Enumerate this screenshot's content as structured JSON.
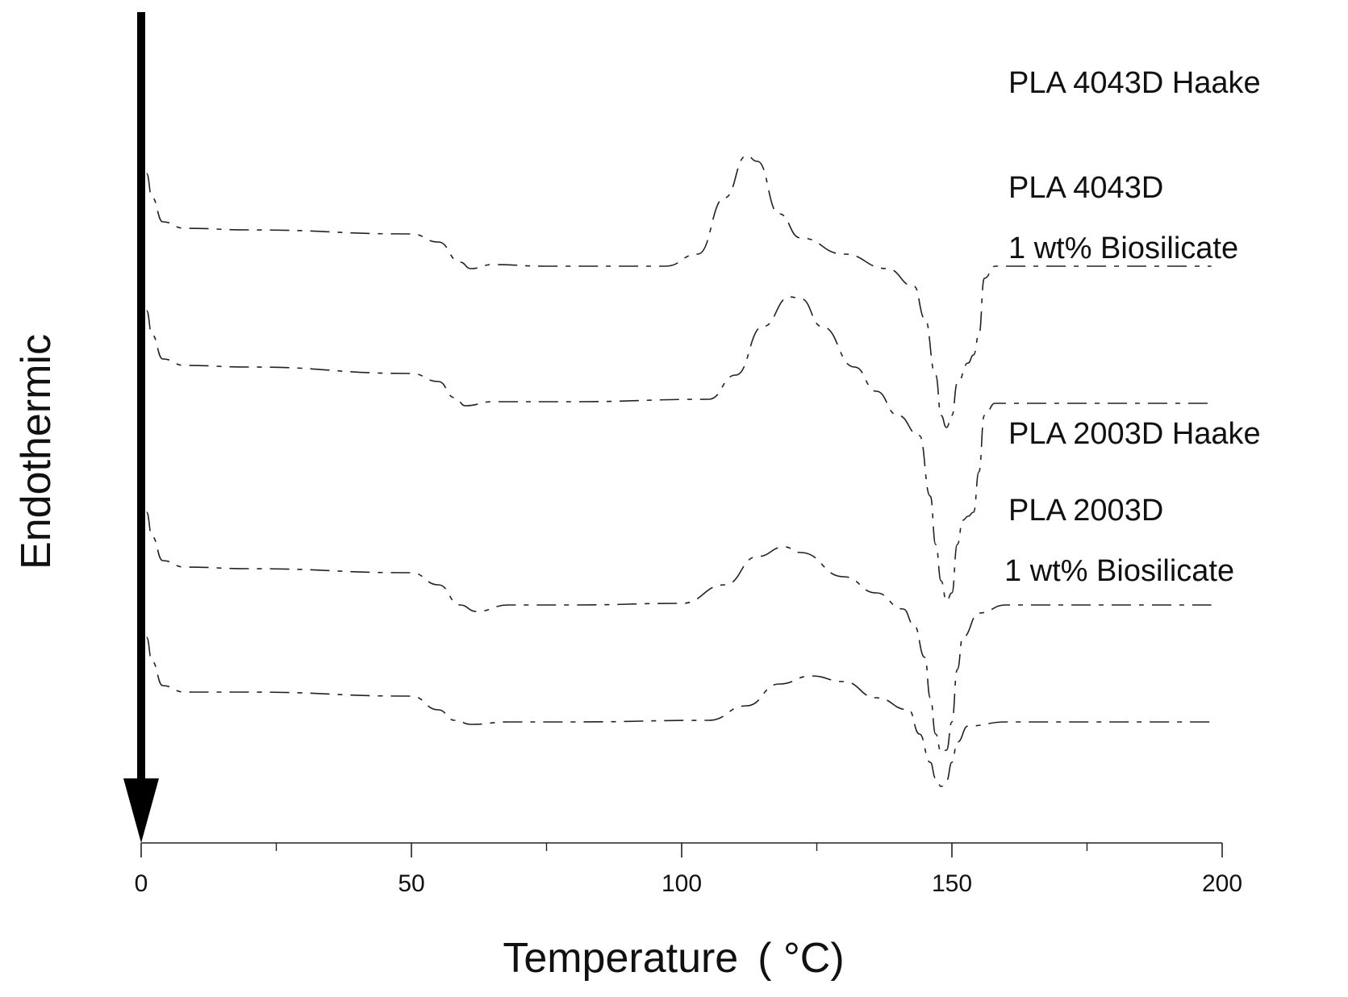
{
  "chart_data": {
    "type": "line",
    "xlabel": "Temperature",
    "xlabel_unit": "( °C)",
    "ylabel": "Endothermic",
    "xlim": [
      0,
      200
    ],
    "x_ticks": [
      0,
      50,
      100,
      150,
      200
    ],
    "x_minor_ticks": [
      25,
      75,
      125,
      175
    ],
    "y_ticks": [],
    "grid": false,
    "series": [
      {
        "name": "PLA 4043D Haake",
        "label_lines": [
          "PLA 4043D Haake"
        ],
        "points": [
          [
            1,
            -20
          ],
          [
            2,
            -50
          ],
          [
            4,
            -80
          ],
          [
            8,
            -88
          ],
          [
            20,
            -90
          ],
          [
            50,
            -95
          ],
          [
            55,
            -105
          ],
          [
            59,
            -130
          ],
          [
            61,
            -138
          ],
          [
            65,
            -133
          ],
          [
            75,
            -135
          ],
          [
            97,
            -135
          ],
          [
            103,
            -120
          ],
          [
            108,
            -50
          ],
          [
            112,
            2
          ],
          [
            114,
            -5
          ],
          [
            118,
            -70
          ],
          [
            122,
            -100
          ],
          [
            130,
            -120
          ],
          [
            138,
            -138
          ],
          [
            143,
            -160
          ],
          [
            145,
            -200
          ],
          [
            147,
            -270
          ],
          [
            148,
            -320
          ],
          [
            149,
            -335
          ],
          [
            150,
            -320
          ],
          [
            151,
            -280
          ],
          [
            153,
            -255
          ],
          [
            154,
            -245
          ],
          [
            155,
            -220
          ],
          [
            156,
            -150
          ],
          [
            158,
            -135
          ],
          [
            170,
            -135
          ],
          [
            198,
            -135
          ]
        ]
      },
      {
        "name": "PLA 4043D 1 wt% Biosilicate",
        "label_lines": [
          "PLA 4043D",
          "1 wt% Biosilicate"
        ],
        "points": [
          [
            1,
            -20
          ],
          [
            2,
            -50
          ],
          [
            4,
            -80
          ],
          [
            8,
            -88
          ],
          [
            20,
            -90
          ],
          [
            50,
            -98
          ],
          [
            55,
            -108
          ],
          [
            58,
            -128
          ],
          [
            60,
            -138
          ],
          [
            65,
            -133
          ],
          [
            80,
            -133
          ],
          [
            105,
            -130
          ],
          [
            110,
            -100
          ],
          [
            115,
            -40
          ],
          [
            120,
            -3
          ],
          [
            122,
            -5
          ],
          [
            126,
            -40
          ],
          [
            132,
            -90
          ],
          [
            136,
            -120
          ],
          [
            140,
            -150
          ],
          [
            144,
            -175
          ],
          [
            146,
            -250
          ],
          [
            147,
            -310
          ],
          [
            148,
            -355
          ],
          [
            149,
            -380
          ],
          [
            150,
            -370
          ],
          [
            151,
            -310
          ],
          [
            152,
            -280
          ],
          [
            153,
            -275
          ],
          [
            154,
            -270
          ],
          [
            155,
            -220
          ],
          [
            156,
            -150
          ],
          [
            158,
            -135
          ],
          [
            170,
            -135
          ],
          [
            198,
            -135
          ]
        ]
      },
      {
        "name": "PLA 2003D Haake",
        "label_lines": [
          "PLA 2003D Haake"
        ],
        "points": [
          [
            1,
            -20
          ],
          [
            2,
            -50
          ],
          [
            4,
            -80
          ],
          [
            8,
            -88
          ],
          [
            20,
            -90
          ],
          [
            50,
            -95
          ],
          [
            55,
            -110
          ],
          [
            59,
            -135
          ],
          [
            62,
            -143
          ],
          [
            68,
            -135
          ],
          [
            80,
            -135
          ],
          [
            100,
            -133
          ],
          [
            108,
            -110
          ],
          [
            114,
            -75
          ],
          [
            119,
            -63
          ],
          [
            122,
            -70
          ],
          [
            130,
            -100
          ],
          [
            136,
            -120
          ],
          [
            141,
            -140
          ],
          [
            143,
            -160
          ],
          [
            145,
            -200
          ],
          [
            146,
            -250
          ],
          [
            147,
            -295
          ],
          [
            148,
            -318
          ],
          [
            149,
            -315
          ],
          [
            150,
            -280
          ],
          [
            151,
            -215
          ],
          [
            152,
            -175
          ],
          [
            155,
            -145
          ],
          [
            160,
            -135
          ],
          [
            198,
            -135
          ]
        ]
      },
      {
        "name": "PLA 2003D 1 wt% Biosilicate",
        "label_lines": [
          "PLA 2003D",
          "1 wt% Biosilicate"
        ],
        "points": [
          [
            1,
            -20
          ],
          [
            2,
            -50
          ],
          [
            4,
            -80
          ],
          [
            8,
            -88
          ],
          [
            20,
            -88
          ],
          [
            50,
            -93
          ],
          [
            55,
            -110
          ],
          [
            58,
            -123
          ],
          [
            61,
            -128
          ],
          [
            68,
            -125
          ],
          [
            80,
            -125
          ],
          [
            105,
            -123
          ],
          [
            112,
            -105
          ],
          [
            118,
            -78
          ],
          [
            124,
            -68
          ],
          [
            130,
            -75
          ],
          [
            136,
            -95
          ],
          [
            142,
            -110
          ],
          [
            144,
            -140
          ],
          [
            146,
            -175
          ],
          [
            147,
            -195
          ],
          [
            148,
            -205
          ],
          [
            149,
            -198
          ],
          [
            150,
            -175
          ],
          [
            151,
            -150
          ],
          [
            153,
            -130
          ],
          [
            160,
            -125
          ],
          [
            198,
            -125
          ]
        ]
      }
    ]
  }
}
